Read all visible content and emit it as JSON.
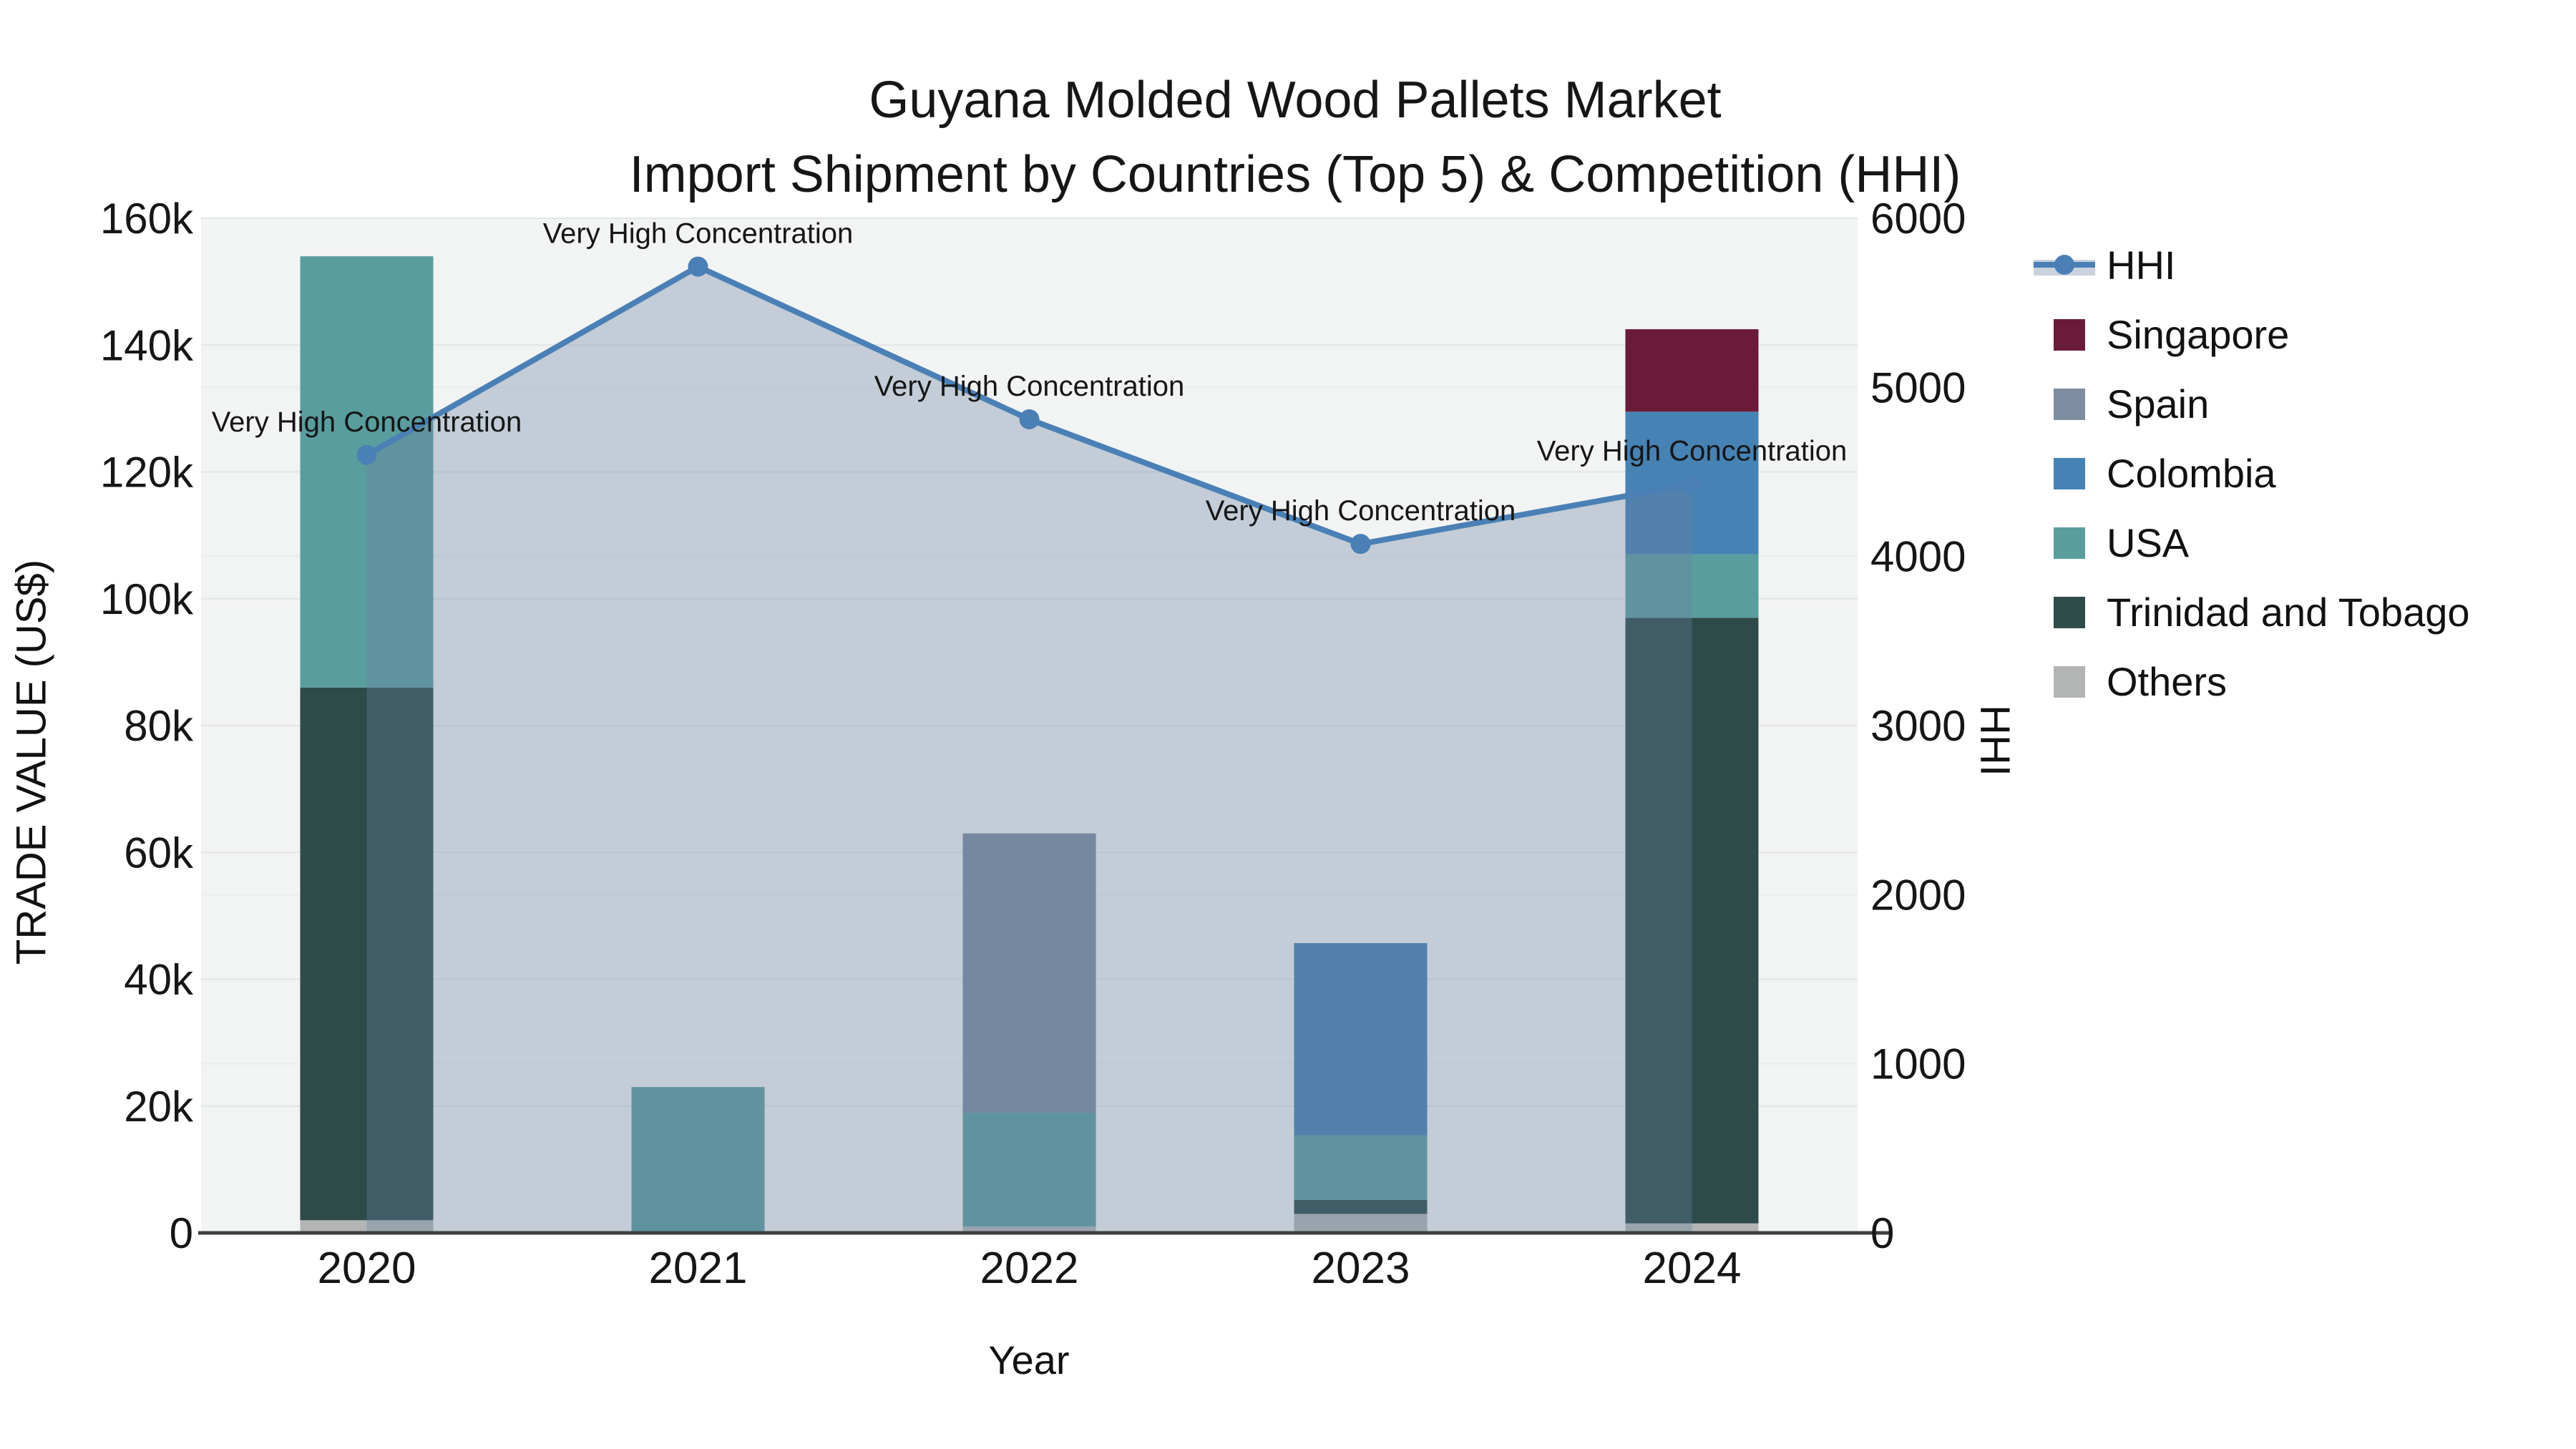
{
  "title": {
    "line1": "Guyana Molded Wood Pallets Market",
    "line2": "Import Shipment by Countries (Top 5) & Competition (HHI)"
  },
  "legend": {
    "position": "right",
    "items": [
      {
        "label": "HHI",
        "color": "#4a80b5",
        "type": "line"
      },
      {
        "label": "Singapore",
        "color": "#6b1b3a",
        "type": "square"
      },
      {
        "label": "Spain",
        "color": "#7d8ca0",
        "type": "square"
      },
      {
        "label": "Colombia",
        "color": "#4682b4",
        "type": "square"
      },
      {
        "label": "USA",
        "color": "#5a9d9e",
        "type": "square"
      },
      {
        "label": "Trinidad and Tobago",
        "color": "#2d4b49",
        "type": "square"
      },
      {
        "label": "Others",
        "color": "#b2b5b4",
        "type": "square"
      }
    ]
  },
  "chart_data": {
    "type": "bar",
    "subtype": "stacked bars (left axis, thousand US$) + HHI line with area fill (right axis)",
    "title": "Guyana Molded Wood Pallets Market — Import Shipment by Countries (Top 5) & Competition (HHI)",
    "categories": [
      "2020",
      "2021",
      "2022",
      "2023",
      "2024"
    ],
    "units_note": "values_k are thousand US$ (left axis); hhi values on right axis",
    "stack_order_bottom_to_top": [
      "Others",
      "Trinidad and Tobago",
      "USA",
      "Colombia",
      "Spain",
      "Singapore"
    ],
    "series": [
      {
        "name": "Singapore",
        "color": "#6b1b3a",
        "values_k": [
          0,
          0,
          0,
          0,
          13
        ]
      },
      {
        "name": "Spain",
        "color": "#7d8ca0",
        "values_k": [
          0,
          0,
          44,
          0,
          0
        ]
      },
      {
        "name": "Colombia",
        "color": "#4682b4",
        "values_k": [
          0,
          0,
          0,
          30.3,
          22.5
        ]
      },
      {
        "name": "USA",
        "color": "#5a9d9e",
        "values_k": [
          68,
          23,
          18,
          10.2,
          10
        ]
      },
      {
        "name": "Trinidad and Tobago",
        "color": "#2d4b49",
        "values_k": [
          84,
          0,
          0,
          2.2,
          95.5
        ]
      },
      {
        "name": "Others",
        "color": "#b2b5b4",
        "values_k": [
          2,
          0,
          1,
          3,
          1.5
        ]
      }
    ],
    "bar_totals_k": [
      154,
      23,
      63,
      45.7,
      142.5
    ],
    "hhi": {
      "name": "HHI",
      "line_color": "#4a80b5",
      "fill_color": "rgba(105,128,160,0.34)",
      "values": [
        4600,
        5714,
        4811,
        4074,
        4428
      ],
      "annotations": [
        "Very High Concentration",
        "Very High Concentration",
        "Very High Concentration",
        "Very High Concentration",
        "Very High Concentration"
      ]
    },
    "left_axis": {
      "title": "TRADE VALUE (US$)",
      "min": 0,
      "max_k": 160,
      "ticks_k": [
        0,
        20,
        40,
        60,
        80,
        100,
        120,
        140,
        160
      ],
      "tick_labels": [
        "0",
        "20k",
        "40k",
        "60k",
        "80k",
        "100k",
        "120k",
        "140k",
        "160k"
      ]
    },
    "right_axis": {
      "title": "HHI",
      "min": 0,
      "max": 6000,
      "ticks": [
        0,
        1000,
        2000,
        3000,
        4000,
        5000,
        6000
      ],
      "tick_labels": [
        "0",
        "1000",
        "2000",
        "3000",
        "4000",
        "5000",
        "6000"
      ]
    },
    "x_axis": {
      "title": "Year"
    },
    "grid": true,
    "legend_position": "right",
    "colors": {
      "plot_background": "#f2f3f3",
      "figure_background": "#ffffff",
      "gridline_left": "#e3e5e7",
      "gridline_right": "#eaecee",
      "axis_line": "#3f3f3f",
      "tick_text": "#161616",
      "annotation_text": "#161616"
    }
  }
}
